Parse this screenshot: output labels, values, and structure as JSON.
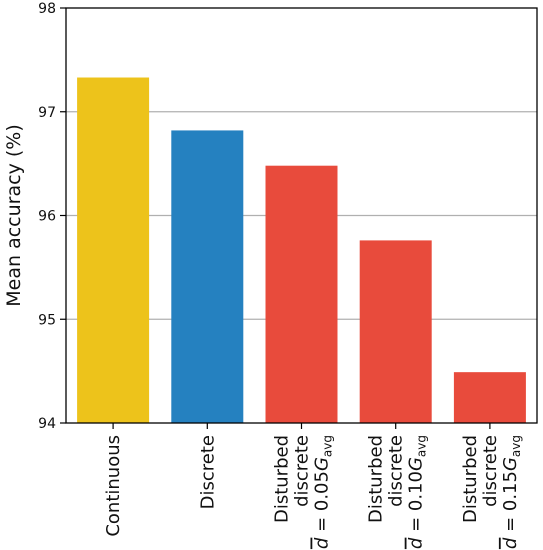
{
  "chart_data": {
    "type": "bar",
    "title": "",
    "xlabel": "",
    "ylabel": "Mean accuracy (%)",
    "ylim": [
      94,
      98
    ],
    "yticks": [
      94,
      95,
      96,
      97,
      98
    ],
    "grid": "horizontal",
    "legend": "none",
    "categories": [
      {
        "lines": [
          "Continuous"
        ]
      },
      {
        "lines": [
          "Discrete"
        ]
      },
      {
        "lines": [
          "Disturbed",
          "discrete"
        ],
        "formula": {
          "pre": "= 0.05",
          "var": "G",
          "sub": "avg"
        }
      },
      {
        "lines": [
          "Disturbed",
          "discrete"
        ],
        "formula": {
          "pre": "= 0.10",
          "var": "G",
          "sub": "avg"
        }
      },
      {
        "lines": [
          "Disturbed",
          "discrete"
        ],
        "formula": {
          "pre": "= 0.15",
          "var": "G",
          "sub": "avg"
        }
      }
    ],
    "formula_symbol": "d",
    "values": [
      97.33,
      96.82,
      96.48,
      95.76,
      94.49
    ],
    "colors": [
      "#edc31b",
      "#2581c0",
      "#e84b3c",
      "#e84b3c",
      "#e84b3c"
    ]
  }
}
